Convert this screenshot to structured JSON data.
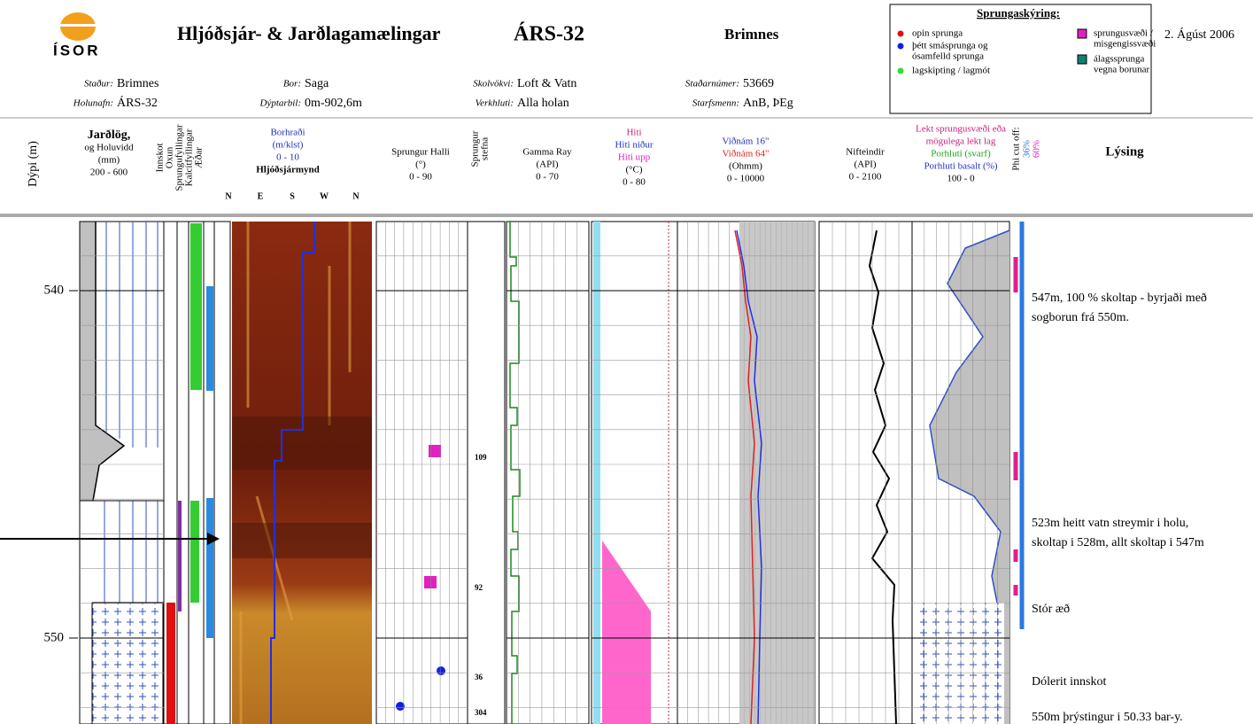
{
  "header": {
    "logo": "ÍSOR",
    "title": "Hljóðsjár- & Jarðlagamælingar",
    "well": "ÁRS-32",
    "location": "Brimnes",
    "date": "2. Ágúst 2006",
    "fields": [
      {
        "label": "Staður:",
        "value": "Brimnes"
      },
      {
        "label": "Holunafn:",
        "value": "ÁRS-32"
      },
      {
        "label": "Bor:",
        "value": "Saga"
      },
      {
        "label": "Dýptarbil:",
        "value": "0m-902,6m"
      },
      {
        "label": "Skolvökvi:",
        "value": "Loft & Vatn"
      },
      {
        "label": "Verkhluti:",
        "value": "Alla holan"
      },
      {
        "label": "Staðarnúmer:",
        "value": "53669"
      },
      {
        "label": "Starfsmenn:",
        "value": "AnB, ÞEg"
      }
    ]
  },
  "legend": {
    "title": "Sprungaskýring:",
    "items": [
      {
        "lines": [
          "opin sprunga"
        ]
      },
      {
        "lines": [
          "þétt smásprunga og",
          "ósamfelld sprunga"
        ]
      },
      {
        "lines": [
          "lagskipting / lagmót"
        ]
      },
      {
        "lines": [
          "sprungusvæði /",
          "misgengissvæði"
        ]
      },
      {
        "lines": [
          "álagssprunga",
          "vegna borunar"
        ]
      }
    ]
  },
  "columns": {
    "depth": "Dýpi (m)",
    "lithology": [
      "Jarðlög,",
      "og Holuvidd",
      "(mm)",
      "200 - 600"
    ],
    "narrow": [
      "Innskot",
      "Oxun",
      "Sprungufyllingar",
      "Kalcítfyllingar",
      "Æðar"
    ],
    "image": [
      "Borhraði",
      "(m/klst)",
      "0 - 10",
      "Hljóðsjármynd"
    ],
    "compass": [
      "N",
      "E",
      "S",
      "W",
      "N"
    ],
    "dip": [
      "Sprungur Halli",
      "(°)",
      "0 - 90"
    ],
    "azimuth": [
      "Sprungur",
      "stefna"
    ],
    "gamma": [
      "Gamma Ray",
      "(API)",
      "0 - 70"
    ],
    "temp": [
      "Hiti",
      "Hiti niður",
      "Hiti upp",
      "(°C)",
      "0 - 80"
    ],
    "res": [
      "Viðnám 16\"",
      "Viðnám 64\"",
      "(Ohmm)",
      "0 - 10000"
    ],
    "neutron": [
      "Nifteindir",
      "(API)",
      "0 - 2100"
    ],
    "porosity": [
      "Lekt sprungusvæði eða",
      "mögulega lekt lag",
      "Porhluti (svarf)",
      "Porhluti basalt (%)",
      "100 - 0"
    ],
    "phi": [
      "Phi cut off:",
      "36%",
      "60%"
    ],
    "desc": "Lýsing"
  },
  "depth_ticks": [
    540,
    550
  ],
  "fracture_azimuths": [
    "109",
    "92",
    "36",
    "304"
  ],
  "descriptions": [
    {
      "lines": [
        "547m, 100 % skoltap - byrjaði með",
        "sogborun frá 550m."
      ]
    },
    {
      "lines": [
        "523m heitt vatn streymir i holu,",
        "skoltap i 528m, allt skoltap i 547m"
      ]
    },
    {
      "lines": [
        "Stór æð"
      ]
    },
    {
      "lines": [
        "Dólerit innskot"
      ]
    },
    {
      "lines": [
        "550m þrýstingur i 50.33 bar-y."
      ]
    }
  ]
}
